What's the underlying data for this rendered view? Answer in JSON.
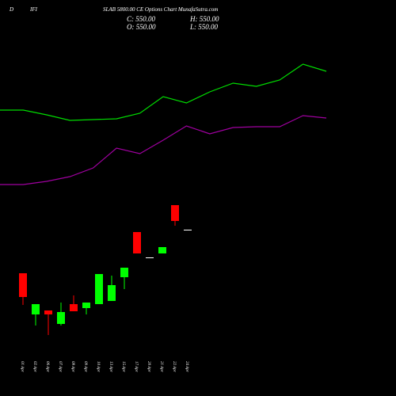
{
  "header": {
    "left": "D",
    "mid": "IFI",
    "title": "SLAB 5800.00 CE Options Chart MunafaSutra.com",
    "close": "C: 550.00",
    "high": "H: 550.00",
    "open": "O: 550.00",
    "low": "L: 550.00"
  },
  "chart_data": [
    {
      "type": "candlestick",
      "up_color": "#00ff00",
      "down_color": "#ff0000",
      "flat_color": "#ffffff",
      "categories": [
        "01 Apr",
        "02 Apr",
        "06 Apr",
        "07 Apr",
        "08 Apr",
        "09 Apr",
        "10 Apr",
        "13 Apr",
        "15 Apr",
        "17 Apr",
        "20 Apr",
        "21 Apr",
        "22 Apr",
        "24 Apr"
      ],
      "open": [
        495,
        443,
        448,
        431,
        456,
        451,
        456,
        460,
        490,
        547,
        515,
        520,
        581,
        550
      ],
      "high": [
        495,
        456,
        448,
        458,
        467,
        458,
        494,
        492,
        502,
        547,
        515,
        528,
        581,
        550
      ],
      "low": [
        455,
        429,
        417,
        429,
        447,
        443,
        456,
        460,
        475,
        520,
        515,
        520,
        555,
        550
      ],
      "close": [
        465,
        456,
        443,
        446,
        447,
        458,
        494,
        480,
        502,
        520,
        515,
        528,
        561,
        550
      ],
      "ylim": [
        340,
        840
      ]
    },
    {
      "type": "line",
      "x": [
        0,
        1,
        2,
        3,
        4,
        5,
        6,
        7,
        8,
        9,
        10,
        11,
        12,
        13,
        14
      ],
      "xlim": [
        0,
        14
      ],
      "ylim": [
        340,
        840
      ],
      "series": [
        {
          "color": "#00dd00",
          "values": [
            701,
            701,
            695,
            688,
            689,
            690,
            697,
            718,
            710,
            724,
            735,
            731,
            739,
            759,
            750
          ]
        },
        {
          "color": "#a000a0",
          "values": [
            607,
            607,
            611,
            617,
            628,
            653,
            646,
            663,
            681,
            671,
            679,
            680,
            680,
            694,
            691
          ]
        }
      ]
    }
  ]
}
